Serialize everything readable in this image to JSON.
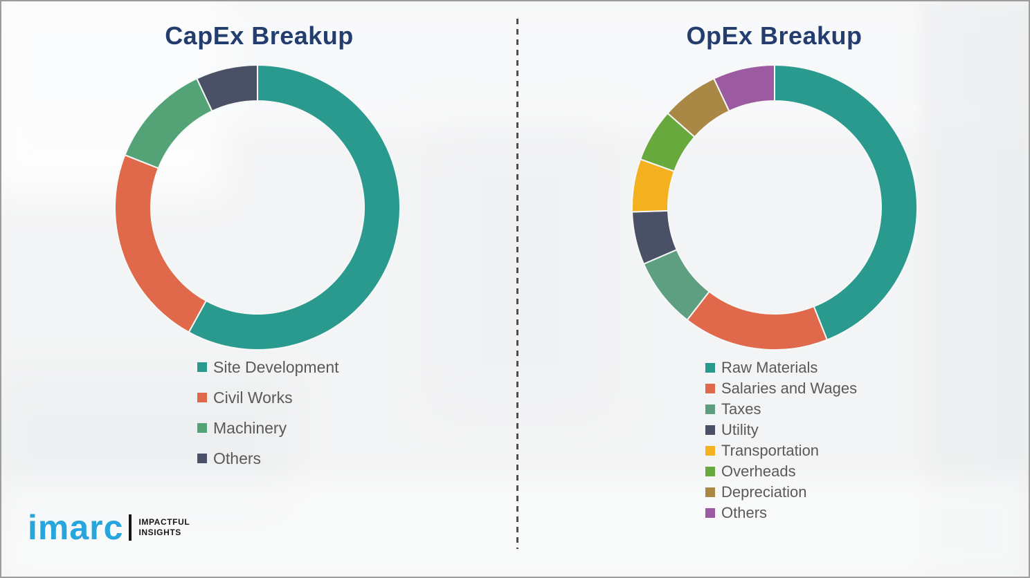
{
  "page": {
    "background_color": "#f3f4f5",
    "border_color": "#9c9c9c",
    "title_color": "#233e6e",
    "legend_text_color": "#595959"
  },
  "chart_data": [
    {
      "type": "pie",
      "donut": true,
      "title": "CapEx Breakup",
      "labels": [
        "Site Development",
        "Civil Works",
        "Machinery",
        "Others"
      ],
      "values": [
        58,
        23,
        12,
        7
      ],
      "colors": [
        "#2a9a8e",
        "#e0684b",
        "#54a377",
        "#4a5166"
      ],
      "unit": "%",
      "start_angle_deg": 0,
      "direction": "clockwise",
      "legend_position": "bottom-left"
    },
    {
      "type": "pie",
      "donut": true,
      "title": "OpEx Breakup",
      "labels": [
        "Raw Materials",
        "Salaries and Wages",
        "Taxes",
        "Utility",
        "Transportation",
        "Overheads",
        "Depreciation",
        "Others"
      ],
      "values": [
        44,
        16.5,
        8,
        6,
        6,
        6,
        6.5,
        7
      ],
      "colors": [
        "#2a9a8e",
        "#e0684b",
        "#5d9f80",
        "#4a5166",
        "#f3b01f",
        "#68a93d",
        "#a98845",
        "#9c5ba0"
      ],
      "unit": "%",
      "start_angle_deg": 0,
      "direction": "clockwise",
      "legend_position": "bottom-left"
    }
  ],
  "logo": {
    "brand": "imarc",
    "brand_color": "#27a5dc",
    "tagline_line1": "IMPACTFUL",
    "tagline_line2": "INSIGHTS"
  }
}
